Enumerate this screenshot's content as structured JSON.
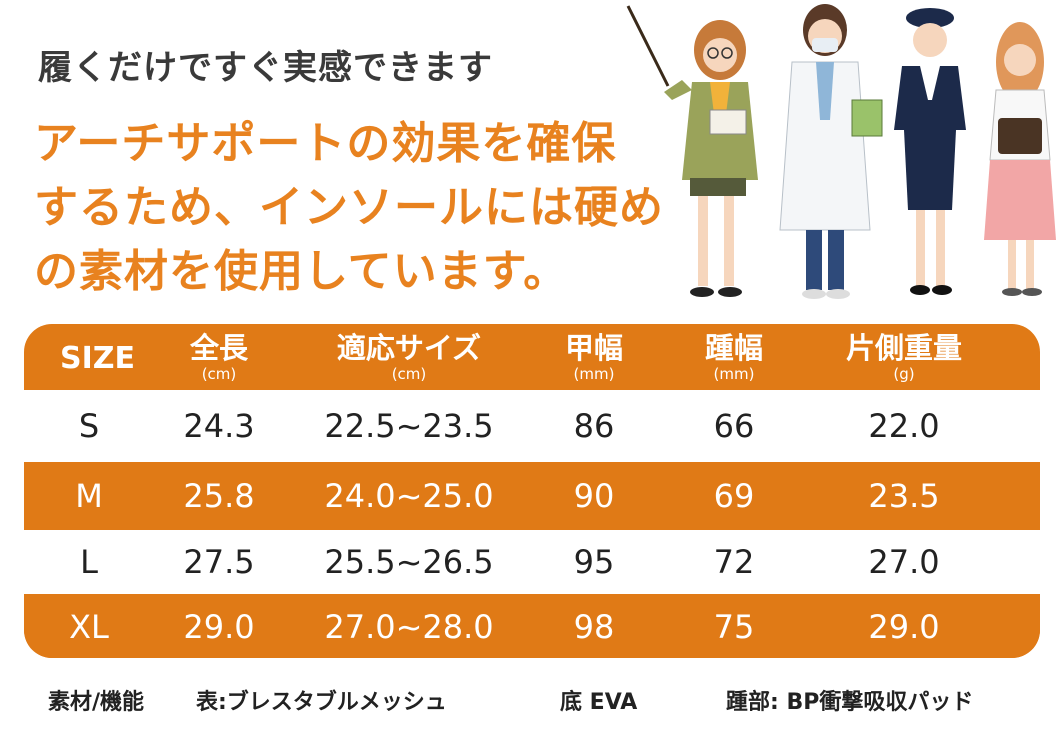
{
  "subhead": "履くだけですぐ実感できます",
  "headline": {
    "line1": "アーチサポートの効果を確保",
    "line2": "するため、インソールには硬め",
    "line3": "の素材を使用しています。"
  },
  "table": {
    "headers": [
      {
        "label": "SIZE",
        "unit": ""
      },
      {
        "label": "全長",
        "unit": "(cm)"
      },
      {
        "label": "適応サイズ",
        "unit": "(cm)"
      },
      {
        "label": "甲幅",
        "unit": "(mm)"
      },
      {
        "label": "踵幅",
        "unit": "(mm)"
      },
      {
        "label": "片側重量",
        "unit": "(g)"
      }
    ],
    "rows": [
      [
        "S",
        "24.3",
        "22.5~23.5",
        "86",
        "66",
        "22.0"
      ],
      [
        "M",
        "25.8",
        "24.0~25.0",
        "90",
        "69",
        "23.5"
      ],
      [
        "L",
        "27.5",
        "25.5~26.5",
        "95",
        "72",
        "27.0"
      ],
      [
        "XL",
        "29.0",
        "27.0~28.0",
        "98",
        "75",
        "29.0"
      ]
    ]
  },
  "footer": {
    "material_label": "素材/機能",
    "top": "表:ブレスタブルメッシュ",
    "sole": "底 EVA",
    "heel": "踵部: BP衝撃吸収パッド"
  },
  "colors": {
    "accent": "#e07a16",
    "headline": "#e8821f",
    "text": "#222222"
  }
}
